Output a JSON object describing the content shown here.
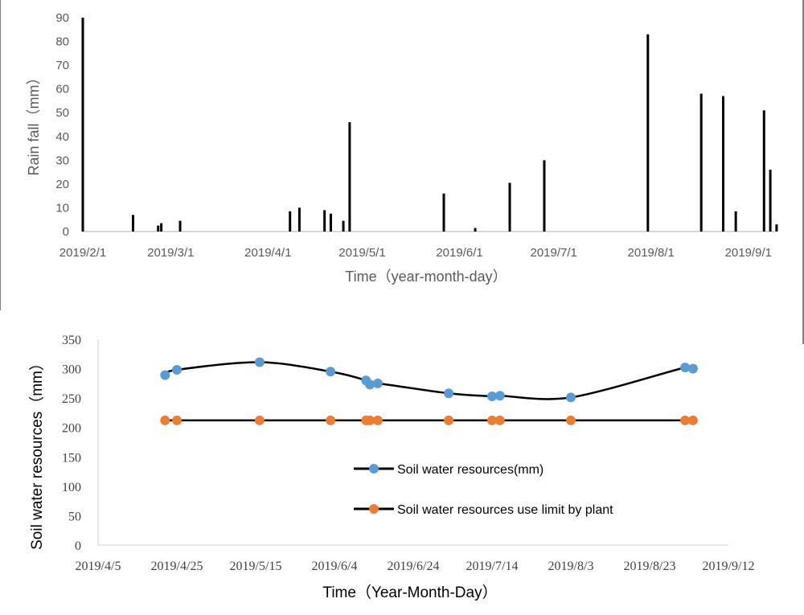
{
  "chart_data": [
    {
      "type": "bar",
      "title": "",
      "xlabel": "Time（year-month-day）",
      "ylabel": "Rain fall（mm）",
      "ylim": [
        0,
        90
      ],
      "yticks": [
        0,
        10,
        20,
        30,
        40,
        50,
        60,
        70,
        80,
        90
      ],
      "xlim": [
        "2019-02-01",
        "2019-09-09"
      ],
      "xticks": [
        "2019-02-01",
        "2019-03-01",
        "2019-04-01",
        "2019-05-01",
        "2019-06-01",
        "2019-07-01",
        "2019-08-01",
        "2019-09-01"
      ],
      "xtick_labels": [
        "2019/2/1",
        "2019/3/1",
        "2019/4/1",
        "2019/5/1",
        "2019/6/1",
        "2019/7/1",
        "2019/8/1",
        "2019/9/1"
      ],
      "grid": false,
      "bar_color": "#000000",
      "series": [
        {
          "x": [
            "2019-02-01",
            "2019-02-17",
            "2019-02-25",
            "2019-02-26",
            "2019-03-04",
            "2019-04-08",
            "2019-04-11",
            "2019-04-19",
            "2019-04-21",
            "2019-04-25",
            "2019-04-27",
            "2019-05-27",
            "2019-06-06",
            "2019-06-17",
            "2019-06-28",
            "2019-07-31",
            "2019-08-17",
            "2019-08-24",
            "2019-08-28",
            "2019-09-06",
            "2019-09-08",
            "2019-09-10"
          ],
          "y": [
            90,
            7,
            2.5,
            3.5,
            4.5,
            8.5,
            10,
            9,
            7.5,
            4.5,
            46,
            16,
            1.5,
            20.5,
            30,
            83,
            58,
            57,
            8.5,
            51,
            26,
            3
          ]
        }
      ]
    },
    {
      "type": "line",
      "title": "",
      "xlabel": "Time（Year-Month-Day）",
      "ylabel": "Soil water resources（mm）",
      "ylim": [
        0,
        350
      ],
      "yticks": [
        0,
        50,
        100,
        150,
        200,
        250,
        300,
        350
      ],
      "xlim": [
        "2019-04-05",
        "2019-09-12"
      ],
      "xticks": [
        "2019-04-05",
        "2019-04-25",
        "2019-05-15",
        "2019-06-04",
        "2019-06-24",
        "2019-07-14",
        "2019-08-03",
        "2019-08-23",
        "2019-09-12"
      ],
      "xtick_labels": [
        "2019/4/5",
        "2019/4/25",
        "2019/5/15",
        "2019/6/4",
        "2019/6/24",
        "2019/7/14",
        "2019/8/3",
        "2019/8/23",
        "2019/9/12"
      ],
      "grid": false,
      "legend_position": "center",
      "series": [
        {
          "name": "Soil water resources(mm)",
          "color": "#5B9BD5",
          "line_color": "#000000",
          "smooth": true,
          "x": [
            "2019-04-22",
            "2019-04-25",
            "2019-05-16",
            "2019-06-03",
            "2019-06-12",
            "2019-06-13",
            "2019-06-15",
            "2019-07-03",
            "2019-07-14",
            "2019-07-16",
            "2019-08-03",
            "2019-09-01",
            "2019-09-03"
          ],
          "y": [
            289,
            298,
            311,
            295,
            280,
            273,
            275,
            258,
            253,
            254,
            251,
            302,
            300
          ]
        },
        {
          "name": "Soil water resources use limit by plant",
          "color": "#ED7D31",
          "line_color": "#000000",
          "smooth": false,
          "x": [
            "2019-04-22",
            "2019-04-25",
            "2019-05-16",
            "2019-06-03",
            "2019-06-12",
            "2019-06-13",
            "2019-06-15",
            "2019-07-03",
            "2019-07-14",
            "2019-07-16",
            "2019-08-03",
            "2019-09-01",
            "2019-09-03"
          ],
          "y": [
            212,
            212,
            212,
            212,
            212,
            212,
            212,
            212,
            212,
            212,
            212,
            212,
            212
          ]
        }
      ]
    }
  ]
}
